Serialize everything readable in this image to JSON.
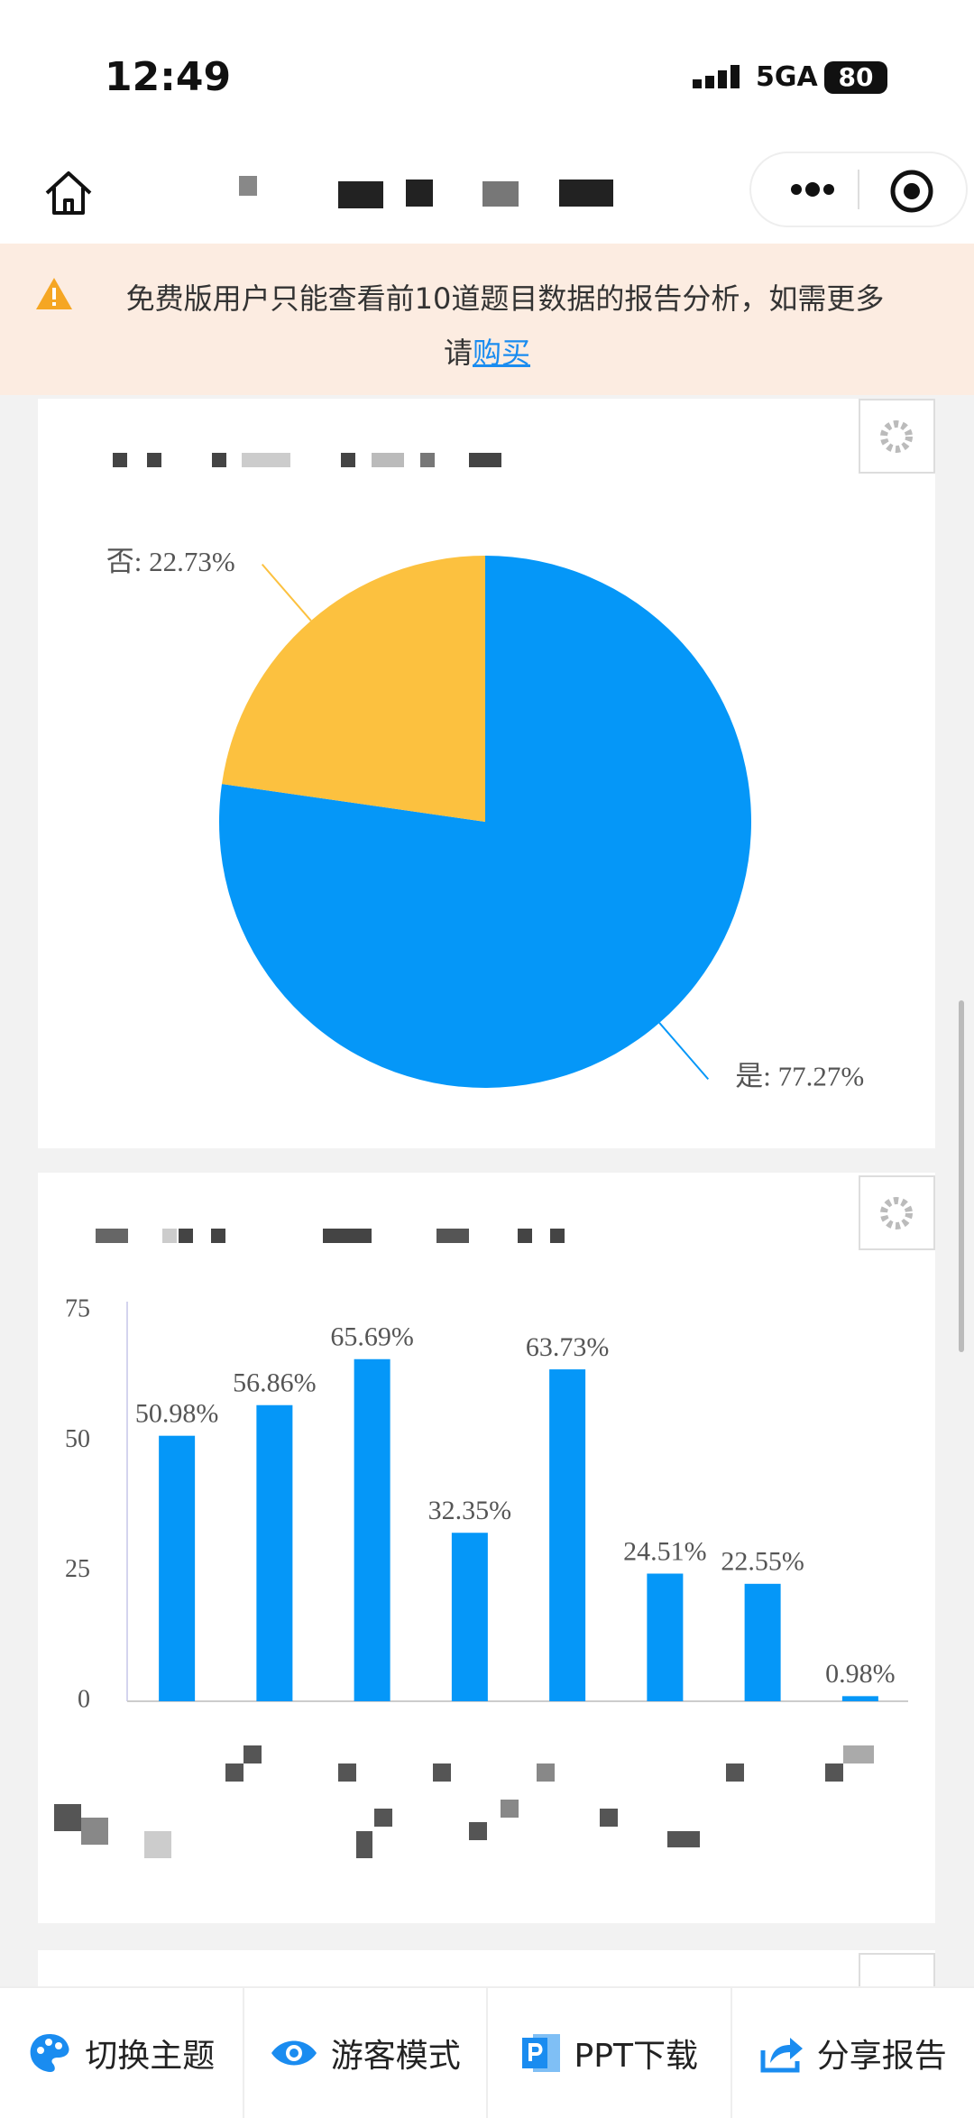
{
  "status_bar": {
    "time": "12:49",
    "network": "5GA",
    "battery": 80
  },
  "notice": {
    "line1": "免费版用户只能查看前10道题目数据的报告分析，如需更多",
    "line2": "请",
    "link": "购买"
  },
  "chart_data": [
    {
      "type": "pie",
      "values": [
        77.27,
        22.73
      ],
      "value_labels": [
        "是: 77.27%",
        "否: 22.73%"
      ],
      "colors": [
        "#0597f8",
        "#fcc13f"
      ]
    },
    {
      "type": "bar",
      "categories": [
        null,
        null,
        null,
        null,
        null,
        null,
        null,
        null
      ],
      "values": [
        50.98,
        56.86,
        65.69,
        32.35,
        63.73,
        24.51,
        22.55,
        0.98
      ],
      "value_labels": [
        "50.98%",
        "56.86%",
        "65.69%",
        "32.35%",
        "63.73%",
        "24.51%",
        "22.55%",
        "0.98%"
      ],
      "color": "#0597f8",
      "ylim": [
        0,
        75
      ],
      "yticks": [
        0,
        25,
        50,
        75
      ],
      "grid": false
    }
  ],
  "toolbar": [
    "切换主题",
    "游客模式",
    "PPT下载",
    "分享报告"
  ]
}
